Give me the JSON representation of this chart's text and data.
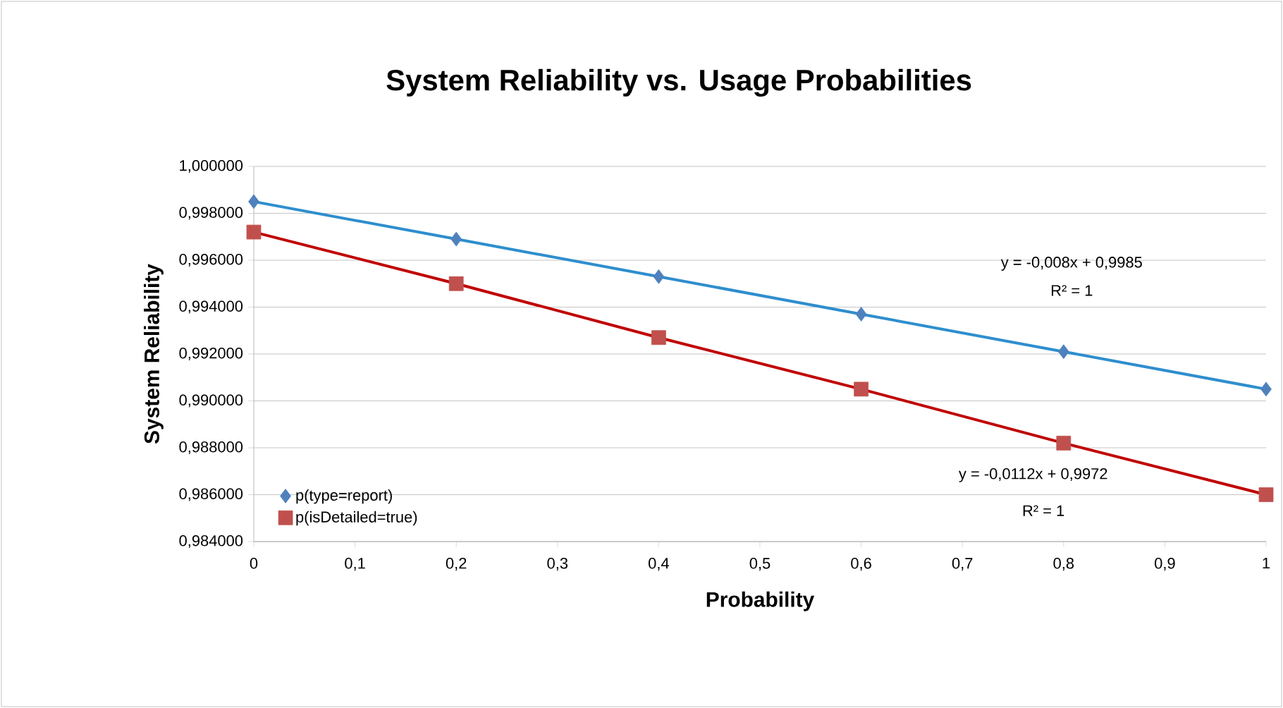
{
  "chart_data": {
    "type": "scatter",
    "title": "System Reliability vs. Usage Probabilities",
    "xlabel": "Probability",
    "ylabel": "System Reliability",
    "x": [
      0,
      0.2,
      0.4,
      0.6,
      0.8,
      1
    ],
    "series": [
      {
        "name": "p(type=report)",
        "color": "#4f81bd",
        "marker": "diamond",
        "values": [
          0.9985,
          0.9969,
          0.9953,
          0.9937,
          0.9921,
          0.9905
        ]
      },
      {
        "name": "p(isDetailed=true)",
        "color": "#c0504d",
        "marker": "square",
        "values": [
          0.9972,
          0.995,
          0.9927,
          0.9905,
          0.9882,
          0.986
        ]
      },
      {
        "type": "line",
        "color": "#2e8ece",
        "values": [
          0.9985,
          0.9969,
          0.9953,
          0.9937,
          0.9921,
          0.9905
        ]
      },
      {
        "type": "line",
        "color": "#c00000",
        "values": [
          0.9972,
          0.995,
          0.9927,
          0.9905,
          0.9882,
          0.986
        ]
      }
    ],
    "annotations": [
      "y = -0,008x + 0,9985",
      "R² = 1",
      "y = -0,0112x + 0,9972",
      "R² = 1"
    ],
    "xlim": [
      0,
      1
    ],
    "ylim": [
      0.984,
      1.0
    ],
    "xticks": [
      0,
      {
        "value": 0.1,
        "label": "0,1"
      },
      {
        "value": 0.2,
        "label": "0,2"
      },
      {
        "value": 0.3,
        "label": "0,3"
      },
      {
        "value": 0.4,
        "label": "0,4"
      },
      {
        "value": 0.5,
        "label": "0,5"
      },
      {
        "value": 0.6,
        "label": "0,6"
      },
      {
        "value": 0.7,
        "label": "0,7"
      },
      {
        "value": 0.8,
        "label": "0,8"
      },
      {
        "value": 0.9,
        "label": "0,9"
      },
      1
    ],
    "yticks": [
      {
        "value": 0.984,
        "label": "0,984000"
      },
      {
        "value": 0.986,
        "label": "0,986000"
      },
      {
        "value": 0.988,
        "label": "0,988000"
      },
      {
        "value": 0.99,
        "label": "0,990000"
      },
      {
        "value": 0.992,
        "label": "0,992000"
      },
      {
        "value": 0.994,
        "label": "0,994000"
      },
      {
        "value": 0.996,
        "label": "0,996000"
      },
      {
        "value": 0.998,
        "label": "0,998000"
      },
      {
        "value": 1.0,
        "label": "1,000000"
      }
    ],
    "grid": "y",
    "legend": "bottom left"
  }
}
